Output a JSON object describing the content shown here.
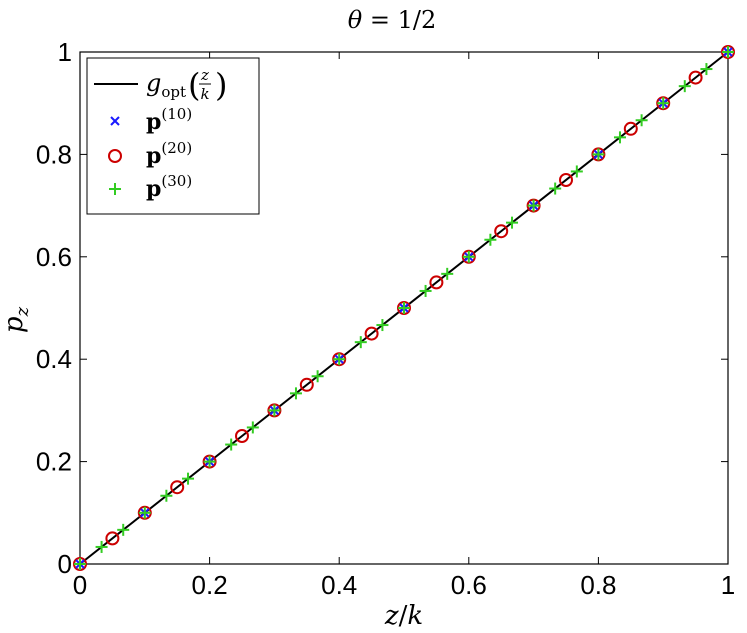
{
  "chart_data": {
    "type": "line",
    "title": "θ = 1/2",
    "xlabel": "z/k",
    "ylabel": "p_z",
    "xlim": [
      0,
      1
    ],
    "ylim": [
      0,
      1
    ],
    "xticks": [
      "0",
      "0.2",
      "0.4",
      "0.6",
      "0.8",
      "1"
    ],
    "yticks": [
      "0",
      "0.2",
      "0.4",
      "0.6",
      "0.8",
      "1"
    ],
    "grid": false,
    "legend_position": "top-left",
    "series": [
      {
        "name": "g_opt(z/k)",
        "style": "line",
        "color": "#000000",
        "x": [
          0,
          1
        ],
        "y": [
          0,
          1
        ]
      },
      {
        "name": "p^(10)",
        "style": "x-marker",
        "color": "#1a1aff",
        "x": [
          0,
          0.1,
          0.2,
          0.3,
          0.4,
          0.5,
          0.6,
          0.7,
          0.8,
          0.9,
          1.0
        ],
        "y": [
          0,
          0.1,
          0.2,
          0.3,
          0.4,
          0.5,
          0.6,
          0.7,
          0.8,
          0.9,
          1.0
        ]
      },
      {
        "name": "p^(20)",
        "style": "circle-marker",
        "color": "#cc0000",
        "x": [
          0,
          0.05,
          0.1,
          0.15,
          0.2,
          0.25,
          0.3,
          0.35,
          0.4,
          0.45,
          0.5,
          0.55,
          0.6,
          0.65,
          0.7,
          0.75,
          0.8,
          0.85,
          0.9,
          0.95,
          1.0
        ],
        "y": [
          0,
          0.05,
          0.1,
          0.15,
          0.2,
          0.25,
          0.3,
          0.35,
          0.4,
          0.45,
          0.5,
          0.55,
          0.6,
          0.65,
          0.7,
          0.75,
          0.8,
          0.85,
          0.9,
          0.95,
          1.0
        ]
      },
      {
        "name": "p^(30)",
        "style": "plus-marker",
        "color": "#33cc22",
        "x": [
          0,
          0.0333,
          0.0667,
          0.1,
          0.1333,
          0.1667,
          0.2,
          0.2333,
          0.2667,
          0.3,
          0.3333,
          0.3667,
          0.4,
          0.4333,
          0.4667,
          0.5,
          0.5333,
          0.5667,
          0.6,
          0.6333,
          0.6667,
          0.7,
          0.7333,
          0.7667,
          0.8,
          0.8333,
          0.8667,
          0.9,
          0.9333,
          0.9667,
          1.0
        ],
        "y": [
          0,
          0.0333,
          0.0667,
          0.1,
          0.1333,
          0.1667,
          0.2,
          0.2333,
          0.2667,
          0.3,
          0.3333,
          0.3667,
          0.4,
          0.4333,
          0.4667,
          0.5,
          0.5333,
          0.5667,
          0.6,
          0.6333,
          0.6667,
          0.7,
          0.7333,
          0.7667,
          0.8,
          0.8333,
          0.8667,
          0.9,
          0.9333,
          0.9667,
          1.0
        ]
      }
    ]
  }
}
